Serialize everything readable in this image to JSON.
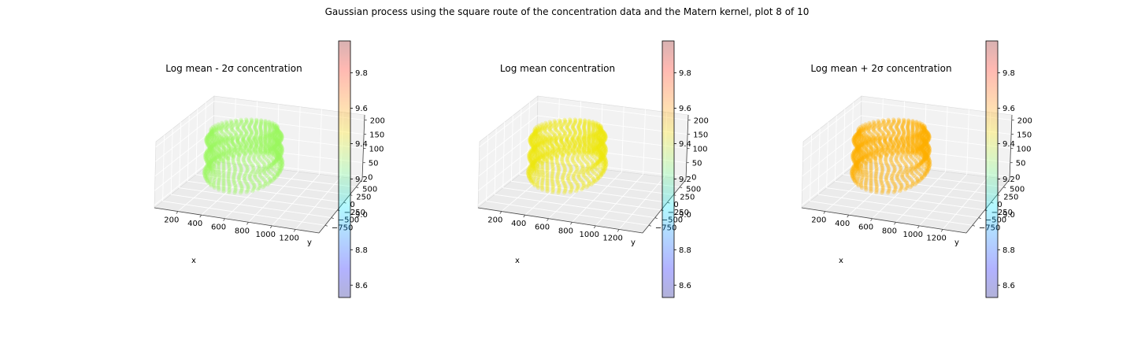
{
  "figure": {
    "suptitle": "Gaussian process using the square route of the concentration data and the Matern kernel, plot 8 of 10"
  },
  "chart_data": [
    {
      "type": "scatter3d",
      "title": "Log mean - 2σ concentration",
      "xlabel": "x",
      "ylabel": "y",
      "zlabel": "",
      "xticks": [
        "200",
        "400",
        "600",
        "800",
        "1000",
        "1200"
      ],
      "yticks": [
        "−750",
        "−500",
        "−250",
        "0",
        "250",
        "500"
      ],
      "zticks": [
        "0",
        "50",
        "100",
        "150",
        "200"
      ],
      "xlim": [
        100,
        1250
      ],
      "ylim": [
        -900,
        650
      ],
      "zlim": [
        0,
        210
      ],
      "colormap": "jet",
      "colorbar": {
        "ticks": [
          "8.6",
          "8.8",
          "9.0",
          "9.2",
          "9.4",
          "9.6",
          "9.8"
        ],
        "range": [
          8.53,
          9.98
        ]
      },
      "approx_value": 9.3,
      "alpha": 0.3
    },
    {
      "type": "scatter3d",
      "title": "Log mean concentration",
      "xlabel": "x",
      "ylabel": "y",
      "zlabel": "",
      "xticks": [
        "200",
        "400",
        "600",
        "800",
        "1000",
        "1200"
      ],
      "yticks": [
        "−750",
        "−500",
        "−250",
        "0",
        "250",
        "500"
      ],
      "zticks": [
        "0",
        "50",
        "100",
        "150",
        "200"
      ],
      "xlim": [
        100,
        1250
      ],
      "ylim": [
        -900,
        650
      ],
      "zlim": [
        0,
        210
      ],
      "colormap": "jet",
      "colorbar": {
        "ticks": [
          "8.6",
          "8.8",
          "9.0",
          "9.2",
          "9.4",
          "9.6",
          "9.8"
        ],
        "range": [
          8.53,
          9.98
        ]
      },
      "approx_value": 9.43,
      "alpha": 0.3
    },
    {
      "type": "scatter3d",
      "title": "Log mean + 2σ concentration",
      "xlabel": "x",
      "ylabel": "y",
      "zlabel": "",
      "xticks": [
        "200",
        "400",
        "600",
        "800",
        "1000",
        "1200"
      ],
      "yticks": [
        "−750",
        "−500",
        "−250",
        "0",
        "250",
        "500"
      ],
      "zticks": [
        "0",
        "50",
        "100",
        "150",
        "200"
      ],
      "xlim": [
        100,
        1250
      ],
      "ylim": [
        -900,
        650
      ],
      "zlim": [
        0,
        210
      ],
      "colormap": "jet",
      "colorbar": {
        "ticks": [
          "8.6",
          "8.8",
          "9.0",
          "9.2",
          "9.4",
          "9.6",
          "9.8"
        ],
        "range": [
          8.53,
          9.98
        ]
      },
      "approx_value": 9.55,
      "alpha": 0.3
    }
  ]
}
